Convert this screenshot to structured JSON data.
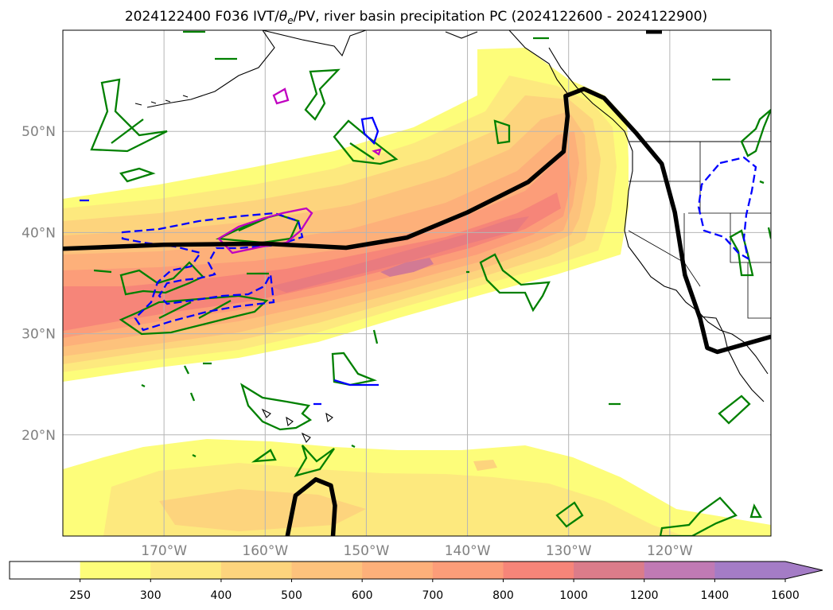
{
  "chart_data": {
    "type": "heatmap",
    "title": "2024122400 F036 IVT/θe/PV, river basin precipitation PC (2024122600 - 2024122900)",
    "title_prefix": "2024122400 F036 IVT/",
    "title_theta": "θ",
    "title_theta_sub": "e",
    "title_suffix": "/PV, river basin precipitation PC (2024122600 - 2024122900)",
    "lon_range": [
      -180,
      -110
    ],
    "lat_range": [
      10,
      60
    ],
    "lat_ticks": [
      {
        "value": 20,
        "label": "20°N"
      },
      {
        "value": 30,
        "label": "30°N"
      },
      {
        "value": 40,
        "label": "40°N"
      },
      {
        "value": 50,
        "label": "50°N"
      }
    ],
    "lon_ticks": [
      {
        "value": -170,
        "label": "170°W"
      },
      {
        "value": -160,
        "label": "160°W"
      },
      {
        "value": -150,
        "label": "150°W"
      },
      {
        "value": -140,
        "label": "140°W"
      },
      {
        "value": -130,
        "label": "130°W"
      },
      {
        "value": -120,
        "label": "120°W"
      }
    ],
    "grid": true,
    "colorbar": {
      "levels": [
        250,
        300,
        400,
        500,
        600,
        700,
        800,
        1000,
        1200,
        1400,
        1600
      ],
      "labels": [
        "250",
        "300",
        "400",
        "500",
        "600",
        "700",
        "800",
        "1000",
        "1200",
        "1400",
        "1600"
      ],
      "colors": [
        "#ffffff",
        "#fdfd7a",
        "#fde97e",
        "#fdd47d",
        "#fdc27c",
        "#fdb07a",
        "#fc9d79",
        "#f68579",
        "#db7c8a",
        "#c07ab4",
        "#a47cc6"
      ],
      "extend": "max"
    },
    "ivt_plume": {
      "axis": [
        [
          -180,
          32.5
        ],
        [
          -165,
          32.7
        ],
        [
          -155,
          33.6
        ],
        [
          -145,
          35.5
        ],
        [
          -138,
          38.4
        ],
        [
          -133,
          42.5
        ],
        [
          -129.5,
          49
        ]
      ],
      "max_ivt": 1400
    },
    "boundary_line": [
      [
        -180,
        38.4
      ],
      [
        -170,
        38.8
      ],
      [
        -160,
        38.9
      ],
      [
        -152,
        38.5
      ],
      [
        -146,
        39.5
      ],
      [
        -140,
        42
      ],
      [
        -134,
        45
      ],
      [
        -130.5,
        48
      ],
      [
        -130.1,
        51.5
      ],
      [
        -130.3,
        53.5
      ],
      [
        -128.5,
        54.2
      ],
      [
        -126.5,
        53.3
      ],
      [
        -123.3,
        49.8
      ],
      [
        -120.8,
        46.8
      ],
      [
        -119.5,
        42
      ],
      [
        -118.5,
        35.8
      ],
      [
        -117,
        31.5
      ],
      [
        -116.3,
        28.6
      ],
      [
        -115.3,
        28.2
      ],
      [
        -110,
        29.7
      ]
    ],
    "lower_loop": [
      [
        -157.8,
        10
      ],
      [
        -157,
        14
      ],
      [
        -155,
        15.6
      ],
      [
        -153.5,
        15
      ],
      [
        -153.1,
        13
      ],
      [
        -153.3,
        10
      ]
    ],
    "line_colors": {
      "theta_e": "#008000",
      "negative_contour": "#0000ff",
      "pv": "#c000c0",
      "boundary": "#000000"
    }
  }
}
